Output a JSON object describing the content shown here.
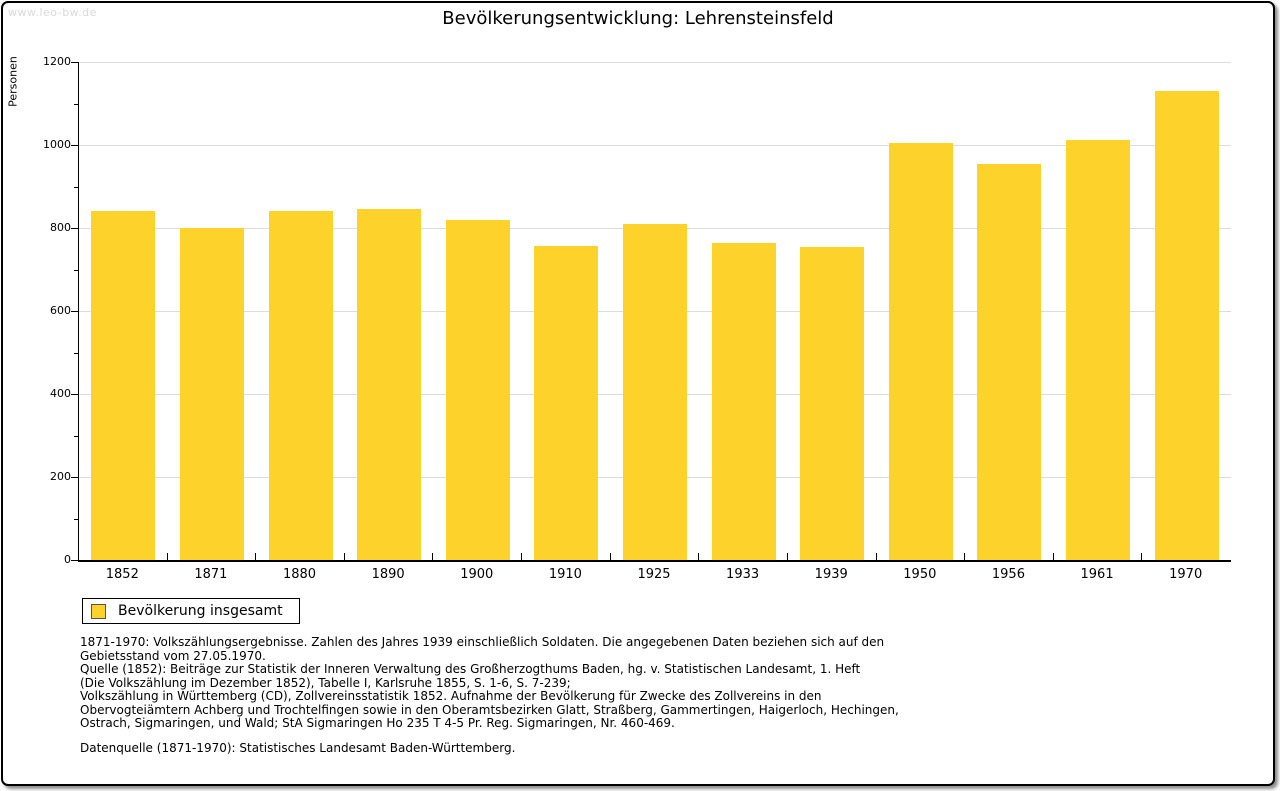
{
  "watermark": "www.leo-bw.de",
  "header": {
    "title": "Bevölkerungsentwicklung: Lehrensteinsfeld"
  },
  "chart_data": {
    "type": "bar",
    "title": "Bevölkerungsentwicklung: Lehrensteinsfeld",
    "xlabel": "",
    "ylabel": "Personen",
    "categories": [
      "1852",
      "1871",
      "1880",
      "1890",
      "1900",
      "1910",
      "1925",
      "1933",
      "1939",
      "1950",
      "1956",
      "1961",
      "1970"
    ],
    "series": [
      {
        "name": "Bevölkerung insgesamt",
        "values": [
          840,
          800,
          842,
          845,
          820,
          757,
          809,
          763,
          755,
          1005,
          955,
          1013,
          1129
        ]
      }
    ],
    "ylim": [
      0,
      1200
    ],
    "ytick_step": 200,
    "yminor_step": 100,
    "grid": true,
    "legend_position": "bottom-left",
    "bar_color": "#FDD32B"
  },
  "legend": {
    "label": "Bevölkerung insgesamt"
  },
  "footnotes": {
    "lines": [
      "1871-1970: Volkszählungsergebnisse. Zahlen des Jahres 1939 einschließlich Soldaten. Die angegebenen Daten beziehen sich auf den",
      "Gebietsstand vom 27.05.1970.",
      "Quelle (1852): Beiträge zur Statistik der Inneren Verwaltung des Großherzogthums Baden, hg. v. Statistischen Landesamt, 1. Heft",
      "(Die Volkszählung im Dezember 1852), Tabelle I, Karlsruhe 1855, S. 1-6, S. 7-239;",
      "Volkszählung in Württemberg (CD), Zollvereinsstatistik 1852. Aufnahme der Bevölkerung für Zwecke des Zollvereins in den",
      "Obervogteiämtern Achberg und Trochtelfingen sowie in den Oberamtsbezirken Glatt, Straßberg, Gammertingen, Haigerloch, Hechingen,",
      "Ostrach, Sigmaringen, und Wald; StA Sigmaringen Ho 235 T 4-5 Pr. Reg. Sigmaringen, Nr. 460-469."
    ],
    "datasource": "Datenquelle (1871-1970): Statistisches Landesamt Baden-Württemberg."
  }
}
